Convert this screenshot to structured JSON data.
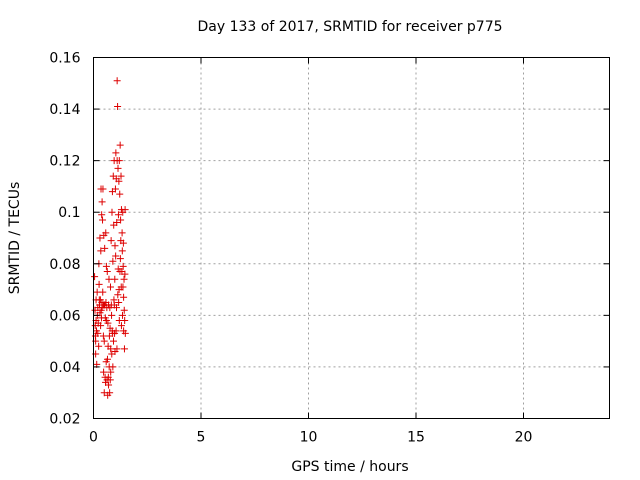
{
  "chart_data": {
    "type": "scatter",
    "title": "Day 133 of 2017, SRMTID for receiver p775",
    "xlabel": "GPS time / hours",
    "ylabel": "SRMTID / TECUs",
    "xlim": [
      0,
      24
    ],
    "ylim": [
      0.02,
      0.16
    ],
    "xticks": [
      0,
      5,
      10,
      15,
      20
    ],
    "yticks": [
      0.02,
      0.04,
      0.06,
      0.08,
      0.1,
      0.12,
      0.14,
      0.16
    ],
    "xtick_labels": [
      "0",
      "5",
      "10",
      "15",
      "20"
    ],
    "ytick_labels": [
      "0.02",
      "0.04",
      "0.06",
      "0.08",
      "0.1",
      "0.12",
      "0.14",
      "0.16"
    ],
    "grid": true,
    "marker": "+",
    "color": "#dd0000",
    "series": [
      {
        "name": "p775",
        "points": [
          [
            0.05,
            0.075
          ],
          [
            0.07,
            0.062
          ],
          [
            0.08,
            0.056
          ],
          [
            0.09,
            0.052
          ],
          [
            0.1,
            0.05
          ],
          [
            0.1,
            0.045
          ],
          [
            0.12,
            0.066
          ],
          [
            0.12,
            0.058
          ],
          [
            0.14,
            0.054
          ],
          [
            0.15,
            0.041
          ],
          [
            0.17,
            0.069
          ],
          [
            0.18,
            0.06
          ],
          [
            0.2,
            0.063
          ],
          [
            0.2,
            0.053
          ],
          [
            0.22,
            0.057
          ],
          [
            0.24,
            0.048
          ],
          [
            0.25,
            0.08
          ],
          [
            0.26,
            0.072
          ],
          [
            0.27,
            0.066
          ],
          [
            0.28,
            0.064
          ],
          [
            0.3,
            0.09
          ],
          [
            0.3,
            0.061
          ],
          [
            0.32,
            0.066
          ],
          [
            0.33,
            0.056
          ],
          [
            0.34,
            0.085
          ],
          [
            0.35,
            0.109
          ],
          [
            0.36,
            0.062
          ],
          [
            0.37,
            0.059
          ],
          [
            0.38,
            0.099
          ],
          [
            0.39,
            0.065
          ],
          [
            0.4,
            0.104
          ],
          [
            0.4,
            0.063
          ],
          [
            0.42,
            0.097
          ],
          [
            0.43,
            0.069
          ],
          [
            0.44,
            0.109
          ],
          [
            0.45,
            0.064
          ],
          [
            0.46,
            0.052
          ],
          [
            0.47,
            0.038
          ],
          [
            0.48,
            0.091
          ],
          [
            0.49,
            0.064
          ],
          [
            0.5,
            0.05
          ],
          [
            0.5,
            0.03
          ],
          [
            0.52,
            0.086
          ],
          [
            0.53,
            0.064
          ],
          [
            0.54,
            0.036
          ],
          [
            0.55,
            0.059
          ],
          [
            0.56,
            0.034
          ],
          [
            0.57,
            0.092
          ],
          [
            0.58,
            0.065
          ],
          [
            0.59,
            0.042
          ],
          [
            0.6,
            0.079
          ],
          [
            0.6,
            0.058
          ],
          [
            0.62,
            0.063
          ],
          [
            0.63,
            0.035
          ],
          [
            0.64,
            0.077
          ],
          [
            0.65,
            0.043
          ],
          [
            0.66,
            0.029
          ],
          [
            0.67,
            0.057
          ],
          [
            0.68,
            0.048
          ],
          [
            0.69,
            0.036
          ],
          [
            0.7,
            0.064
          ],
          [
            0.7,
            0.033
          ],
          [
            0.72,
            0.074
          ],
          [
            0.73,
            0.04
          ],
          [
            0.74,
            0.052
          ],
          [
            0.75,
            0.03
          ],
          [
            0.76,
            0.063
          ],
          [
            0.77,
            0.055
          ],
          [
            0.78,
            0.035
          ],
          [
            0.79,
            0.071
          ],
          [
            0.8,
            0.047
          ],
          [
            0.8,
            0.038
          ],
          [
            0.82,
            0.089
          ],
          [
            0.83,
            0.064
          ],
          [
            0.84,
            0.06
          ],
          [
            0.85,
            0.045
          ],
          [
            0.86,
            0.1
          ],
          [
            0.87,
            0.054
          ],
          [
            0.88,
            0.108
          ],
          [
            0.89,
            0.053
          ],
          [
            0.9,
            0.081
          ],
          [
            0.9,
            0.04
          ],
          [
            0.92,
            0.114
          ],
          [
            0.93,
            0.05
          ],
          [
            0.94,
            0.095
          ],
          [
            0.95,
            0.066
          ],
          [
            0.96,
            0.12
          ],
          [
            0.97,
            0.064
          ],
          [
            0.98,
            0.053
          ],
          [
            0.99,
            0.074
          ],
          [
            1.0,
            0.087
          ],
          [
            1.0,
            0.046
          ],
          [
            1.02,
            0.109
          ],
          [
            1.03,
            0.083
          ],
          [
            1.04,
            0.123
          ],
          [
            1.05,
            0.054
          ],
          [
            1.06,
            0.113
          ],
          [
            1.07,
            0.063
          ],
          [
            1.08,
            0.096
          ],
          [
            1.09,
            0.047
          ],
          [
            1.1,
            0.151
          ],
          [
            1.1,
            0.12
          ],
          [
            1.12,
            0.141
          ],
          [
            1.13,
            0.068
          ],
          [
            1.14,
            0.117
          ],
          [
            1.15,
            0.078
          ],
          [
            1.16,
            0.099
          ],
          [
            1.17,
            0.065
          ],
          [
            1.18,
            0.112
          ],
          [
            1.19,
            0.07
          ],
          [
            1.2,
            0.12
          ],
          [
            1.2,
            0.058
          ],
          [
            1.22,
            0.107
          ],
          [
            1.23,
            0.077
          ],
          [
            1.24,
            0.126
          ],
          [
            1.25,
            0.082
          ],
          [
            1.26,
            0.097
          ],
          [
            1.27,
            0.089
          ],
          [
            1.28,
            0.114
          ],
          [
            1.29,
            0.071
          ],
          [
            1.3,
            0.101
          ],
          [
            1.3,
            0.056
          ],
          [
            1.32,
            0.077
          ],
          [
            1.33,
            0.092
          ],
          [
            1.34,
            0.085
          ],
          [
            1.35,
            0.06
          ],
          [
            1.36,
            0.1
          ],
          [
            1.37,
            0.071
          ],
          [
            1.38,
            0.079
          ],
          [
            1.39,
            0.088
          ],
          [
            1.4,
            0.054
          ],
          [
            1.4,
            0.067
          ],
          [
            1.42,
            0.074
          ],
          [
            1.43,
            0.062
          ],
          [
            1.44,
            0.047
          ],
          [
            1.45,
            0.058
          ],
          [
            1.46,
            0.076
          ],
          [
            1.47,
            0.101
          ],
          [
            1.48,
            0.053
          ]
        ]
      }
    ]
  }
}
